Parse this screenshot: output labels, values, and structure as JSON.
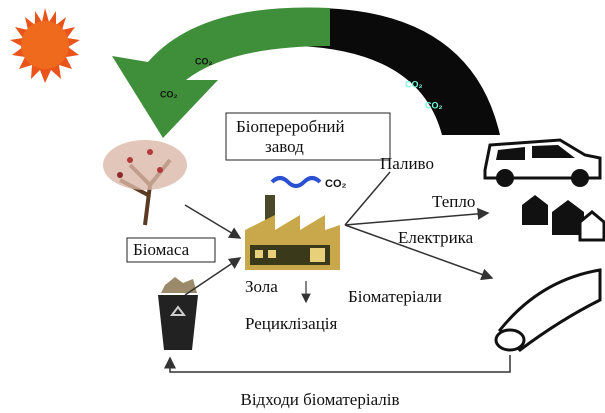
{
  "arrow_labels": {
    "green": [
      "CO₂",
      "CO₂"
    ],
    "black": [
      "CO₂",
      "CO₂"
    ]
  },
  "plant": {
    "title": [
      "Біопереробний",
      "завод"
    ],
    "smoke_label": "CO₂"
  },
  "inputs": {
    "biomass": "Біомаса"
  },
  "outputs": {
    "fuel": "Паливо",
    "heat": "Тепло",
    "electricity": "Електрика",
    "biomaterials": "Біоматеріали"
  },
  "ash": "Зола",
  "recycling": "Рециклізація",
  "waste": "Відходи біоматеріалів"
}
